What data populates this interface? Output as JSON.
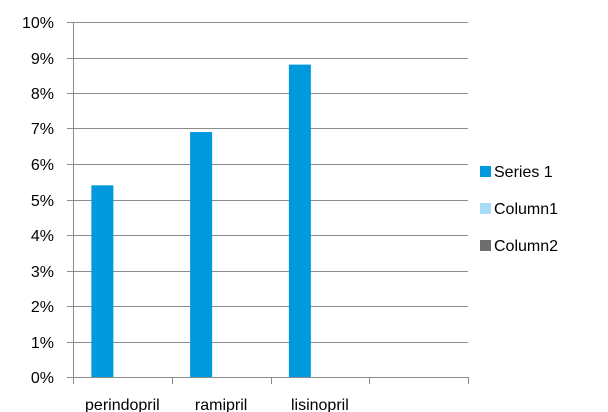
{
  "chart_data": {
    "type": "bar",
    "title": "",
    "xlabel": "",
    "ylabel": "",
    "categories": [
      "perindopril",
      "ramipril",
      "lisinopril",
      ""
    ],
    "series": [
      {
        "name": "Series 1",
        "color": "#0099dd",
        "values": [
          0.054,
          0.069,
          0.088,
          null
        ]
      },
      {
        "name": "Column1",
        "color": "#a6dcf5",
        "values": [
          null,
          null,
          null,
          null
        ]
      },
      {
        "name": "Column2",
        "color": "#6e6e6e",
        "values": [
          null,
          null,
          null,
          null
        ]
      }
    ],
    "ylim": [
      0,
      0.1
    ],
    "yticks": [
      "0%",
      "1%",
      "2%",
      "3%",
      "4%",
      "5%",
      "6%",
      "7%",
      "8%",
      "9%",
      "10%"
    ],
    "grid": true,
    "legend_position": "right"
  }
}
